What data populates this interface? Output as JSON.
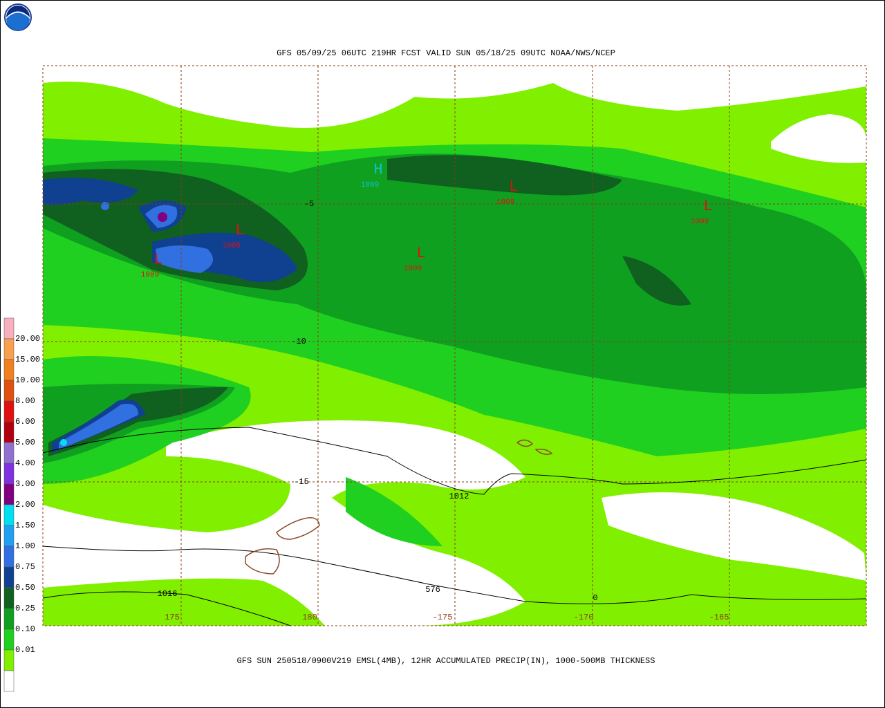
{
  "header": {
    "title": "GFS 05/09/25 06UTC 219HR FCST VALID SUN 05/18/25 09UTC NOAA/NWS/NCEP"
  },
  "footer": {
    "caption": "GFS SUN 250518/0900V219 EMSL(4MB), 12HR ACCUMULATED PRECIP(IN), 1000-500MB THICKNESS"
  },
  "legend": {
    "labels": [
      "20.00",
      "15.00",
      "10.00",
      "8.00",
      "6.00",
      "5.00",
      "4.00",
      "3.00",
      "2.00",
      "1.50",
      "1.00",
      "0.75",
      "0.50",
      "0.25",
      "0.10",
      "0.01"
    ]
  },
  "map": {
    "lon_labels": [
      "175",
      "180",
      "-175",
      "-170",
      "-165"
    ],
    "lat_labels": [
      "-5",
      "-10",
      "-15"
    ],
    "pressure_centers": [
      {
        "symbol": "H",
        "value": "1009"
      },
      {
        "symbol": "L",
        "value": "1009"
      },
      {
        "symbol": "L",
        "value": "1009"
      },
      {
        "symbol": "L",
        "value": "1009"
      },
      {
        "symbol": "L",
        "value": "1009"
      },
      {
        "symbol": "L",
        "value": "1009"
      }
    ],
    "contour_labels": [
      "1012",
      "1016",
      "576",
      "0"
    ]
  }
}
